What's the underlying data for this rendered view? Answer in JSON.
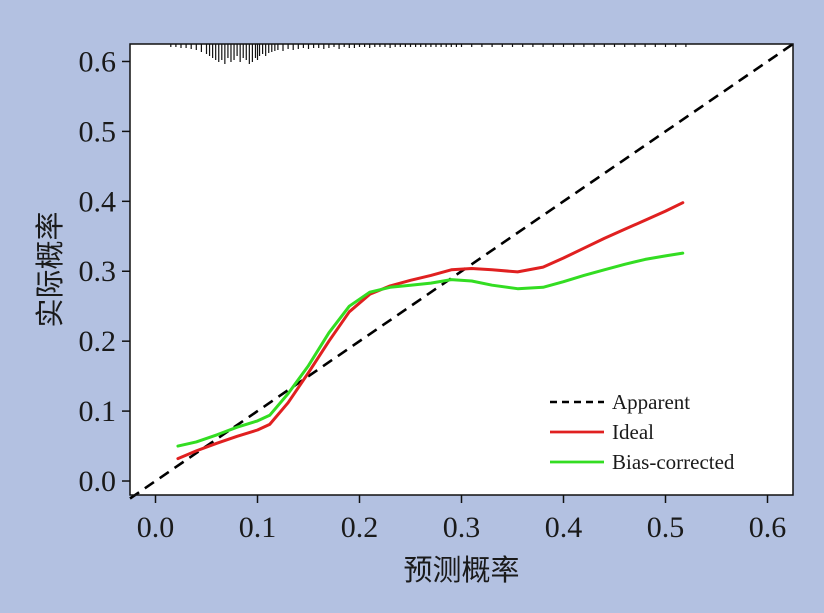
{
  "chart_data": {
    "type": "line",
    "xlabel": "预测概率",
    "ylabel": "实际概率",
    "xlim": [
      -0.025,
      0.625
    ],
    "ylim": [
      -0.02,
      0.625
    ],
    "x_ticks": [
      0.0,
      0.1,
      0.2,
      0.3,
      0.4,
      0.5,
      0.6
    ],
    "x_tick_labels": [
      "0.0",
      "0.1",
      "0.2",
      "0.3",
      "0.4",
      "0.5",
      "0.6"
    ],
    "y_ticks": [
      0.0,
      0.1,
      0.2,
      0.3,
      0.4,
      0.5,
      0.6
    ],
    "y_tick_labels": [
      "0.0",
      "0.1",
      "0.2",
      "0.3",
      "0.4",
      "0.5",
      "0.6"
    ],
    "grid": false,
    "legend_position": "bottom-right",
    "series": [
      {
        "name": "Apparent",
        "color": "#000000",
        "style": "dashed",
        "x": [
          -0.025,
          0.625
        ],
        "y": [
          -0.025,
          0.625
        ]
      },
      {
        "name": "Ideal",
        "color": "#e02020",
        "style": "solid",
        "x": [
          0.022,
          0.04,
          0.06,
          0.08,
          0.1,
          0.112,
          0.13,
          0.15,
          0.17,
          0.19,
          0.21,
          0.23,
          0.25,
          0.27,
          0.29,
          0.31,
          0.33,
          0.355,
          0.38,
          0.4,
          0.42,
          0.44,
          0.46,
          0.48,
          0.5,
          0.517
        ],
        "y": [
          0.032,
          0.043,
          0.054,
          0.064,
          0.073,
          0.081,
          0.112,
          0.155,
          0.2,
          0.242,
          0.267,
          0.279,
          0.287,
          0.294,
          0.302,
          0.304,
          0.302,
          0.299,
          0.306,
          0.319,
          0.333,
          0.347,
          0.36,
          0.373,
          0.386,
          0.398
        ]
      },
      {
        "name": "Bias-corrected",
        "color": "#33dd22",
        "style": "solid",
        "x": [
          0.022,
          0.04,
          0.06,
          0.08,
          0.1,
          0.112,
          0.13,
          0.15,
          0.17,
          0.19,
          0.21,
          0.23,
          0.25,
          0.27,
          0.29,
          0.31,
          0.33,
          0.355,
          0.38,
          0.4,
          0.42,
          0.44,
          0.46,
          0.48,
          0.5,
          0.517
        ],
        "y": [
          0.05,
          0.056,
          0.066,
          0.077,
          0.086,
          0.094,
          0.125,
          0.165,
          0.212,
          0.25,
          0.27,
          0.277,
          0.28,
          0.283,
          0.288,
          0.286,
          0.28,
          0.275,
          0.277,
          0.285,
          0.294,
          0.302,
          0.31,
          0.317,
          0.322,
          0.326
        ]
      }
    ],
    "rug_marks_x": [
      0.015,
      0.02,
      0.025,
      0.03,
      0.035,
      0.04,
      0.045,
      0.05,
      0.053,
      0.056,
      0.059,
      0.062,
      0.065,
      0.068,
      0.071,
      0.074,
      0.077,
      0.08,
      0.083,
      0.086,
      0.089,
      0.092,
      0.095,
      0.098,
      0.1,
      0.102,
      0.105,
      0.108,
      0.111,
      0.114,
      0.117,
      0.12,
      0.125,
      0.13,
      0.135,
      0.14,
      0.145,
      0.15,
      0.155,
      0.16,
      0.165,
      0.17,
      0.175,
      0.18,
      0.185,
      0.19,
      0.195,
      0.2,
      0.205,
      0.21,
      0.215,
      0.22,
      0.225,
      0.23,
      0.235,
      0.24,
      0.245,
      0.25,
      0.255,
      0.26,
      0.265,
      0.27,
      0.275,
      0.28,
      0.285,
      0.29,
      0.295,
      0.3,
      0.31,
      0.32,
      0.33,
      0.34,
      0.35,
      0.36,
      0.37,
      0.38,
      0.39,
      0.4,
      0.41,
      0.42,
      0.43,
      0.44,
      0.45,
      0.46,
      0.47,
      0.48,
      0.49,
      0.5,
      0.51,
      0.52
    ],
    "rug_marks_len": [
      3,
      3,
      4,
      4,
      5,
      6,
      8,
      10,
      12,
      14,
      16,
      18,
      16,
      20,
      14,
      18,
      16,
      12,
      18,
      14,
      16,
      20,
      18,
      14,
      16,
      12,
      10,
      12,
      9,
      8,
      7,
      6,
      7,
      5,
      6,
      5,
      4,
      5,
      4,
      4,
      5,
      4,
      3,
      5,
      3,
      4,
      4,
      3,
      3,
      4,
      3,
      3,
      3,
      4,
      3,
      3,
      3,
      3,
      3,
      3,
      3,
      3,
      3,
      3,
      3,
      3,
      3,
      3,
      3,
      3,
      3,
      3,
      3,
      3,
      3,
      3,
      3,
      3,
      3,
      3,
      3,
      3,
      3,
      3,
      3,
      3,
      3,
      3,
      3,
      3
    ]
  }
}
